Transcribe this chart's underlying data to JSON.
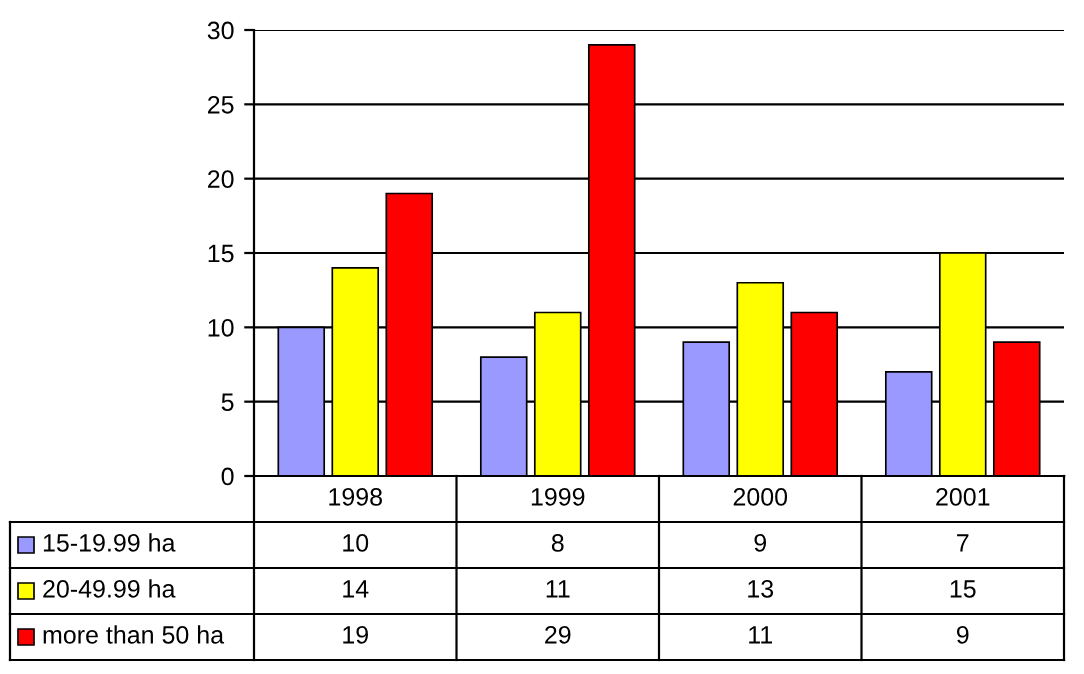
{
  "chart_data": {
    "type": "bar",
    "categories": [
      "1998",
      "1999",
      "2000",
      "2001"
    ],
    "series": [
      {
        "name": "15-19.99 ha",
        "color": "#9999ff",
        "values": [
          10,
          8,
          9,
          7
        ]
      },
      {
        "name": "20-49.99 ha",
        "color": "#ffff00",
        "values": [
          14,
          11,
          13,
          15
        ]
      },
      {
        "name": "more than 50 ha",
        "color": "#ff0000",
        "values": [
          19,
          29,
          11,
          9
        ]
      }
    ],
    "ylim": [
      0,
      30
    ],
    "yticks": [
      0,
      5,
      10,
      15,
      20,
      25,
      30
    ],
    "grid": "y",
    "legend": "bottom left",
    "data_labels": true
  }
}
